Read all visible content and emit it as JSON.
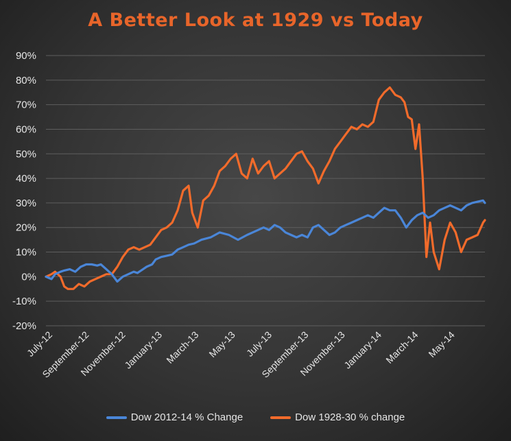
{
  "chart_data": {
    "type": "line",
    "title": "A Better Look at 1929 vs Today",
    "title_color": "#e8652a",
    "background": "dark gradient",
    "grid": true,
    "legend_position": "bottom",
    "ylim": [
      -20,
      90
    ],
    "yticks": [
      -20,
      -10,
      0,
      10,
      20,
      30,
      40,
      50,
      60,
      70,
      80,
      90
    ],
    "ytick_labels": [
      "-20%",
      "-10%",
      "0%",
      "10%",
      "20%",
      "30%",
      "40%",
      "50%",
      "60%",
      "70%",
      "80%",
      "90%"
    ],
    "xticks": [
      "July-12",
      "September-12",
      "November-12",
      "January-13",
      "March-13",
      "May-13",
      "July-13",
      "September-13",
      "November-13",
      "January-14",
      "March-14",
      "May-14"
    ],
    "x_range": [
      0,
      24
    ],
    "series": [
      {
        "name": "Dow 2012-14 % Change",
        "color": "#4a86d8",
        "x": [
          0,
          0.3,
          0.5,
          0.8,
          1.0,
          1.3,
          1.6,
          1.9,
          2.2,
          2.5,
          2.8,
          3.0,
          3.3,
          3.6,
          3.9,
          4.2,
          4.5,
          4.8,
          5.0,
          5.2,
          5.5,
          5.8,
          6.0,
          6.3,
          6.6,
          6.9,
          7.2,
          7.5,
          7.8,
          8.1,
          8.5,
          9.0,
          9.5,
          10.0,
          10.5,
          11.0,
          11.3,
          11.6,
          11.9,
          12.2,
          12.5,
          12.8,
          13.1,
          13.4,
          13.7,
          14.0,
          14.3,
          14.6,
          14.9,
          15.2,
          15.5,
          15.8,
          16.1,
          16.4,
          16.7,
          17.0,
          17.3,
          17.6,
          17.9,
          18.2,
          18.5,
          18.8,
          19.1,
          19.4,
          19.7,
          20.0,
          20.3,
          20.6,
          20.9,
          21.2,
          21.5,
          21.8,
          22.1,
          22.4,
          22.7,
          23.0,
          23.3,
          23.6,
          23.9,
          24.0
        ],
        "values": [
          0,
          -1,
          1,
          2,
          2.5,
          3,
          2,
          4,
          5,
          5,
          4.5,
          5,
          3,
          1,
          -2,
          0,
          1,
          2,
          1.5,
          2.5,
          4,
          5,
          7,
          8,
          8.5,
          9,
          11,
          12,
          13,
          13.5,
          15,
          16,
          18,
          17,
          15,
          17,
          18,
          19,
          20,
          19,
          21,
          20,
          18,
          17,
          16,
          17,
          16,
          20,
          21,
          19,
          17,
          18,
          20,
          21,
          22,
          23,
          24,
          25,
          24,
          26,
          28,
          27,
          27,
          24,
          20,
          23,
          25,
          26,
          24,
          25,
          27,
          28,
          29,
          28,
          27,
          29,
          30,
          30.5,
          31,
          30
        ]
      },
      {
        "name": "Dow 1928-30 % change",
        "color": "#f26b2b",
        "x": [
          0,
          0.3,
          0.5,
          0.8,
          1.0,
          1.2,
          1.5,
          1.8,
          2.1,
          2.4,
          2.7,
          3.0,
          3.3,
          3.6,
          3.9,
          4.2,
          4.5,
          4.8,
          5.1,
          5.4,
          5.7,
          6.0,
          6.3,
          6.6,
          6.9,
          7.2,
          7.5,
          7.8,
          8.0,
          8.3,
          8.6,
          8.9,
          9.2,
          9.5,
          9.8,
          10.1,
          10.4,
          10.7,
          11.0,
          11.3,
          11.6,
          11.9,
          12.2,
          12.5,
          12.8,
          13.1,
          13.4,
          13.7,
          14.0,
          14.3,
          14.6,
          14.9,
          15.2,
          15.5,
          15.8,
          16.1,
          16.4,
          16.7,
          17.0,
          17.3,
          17.6,
          17.9,
          18.2,
          18.5,
          18.8,
          19.1,
          19.4,
          19.6,
          19.8,
          20.0,
          20.2,
          20.4,
          20.6,
          20.8,
          21.0,
          21.2,
          21.5,
          21.8,
          22.1,
          22.4,
          22.7,
          23.0,
          23.3,
          23.6,
          23.9,
          24.0
        ],
        "values": [
          0,
          1,
          2,
          0,
          -4,
          -5,
          -5,
          -3,
          -4,
          -2,
          -1,
          0,
          1,
          1,
          4,
          8,
          11,
          12,
          11,
          12,
          13,
          16,
          19,
          20,
          22,
          27,
          35,
          37,
          26,
          20,
          31,
          33,
          37,
          43,
          45,
          48,
          50,
          42,
          40,
          48,
          42,
          45,
          47,
          40,
          42,
          44,
          47,
          50,
          51,
          47,
          44,
          38,
          43,
          47,
          52,
          55,
          58,
          61,
          60,
          62,
          61,
          63,
          72,
          75,
          77,
          74,
          73,
          71,
          65,
          64,
          52,
          62,
          40,
          8,
          22,
          10,
          3,
          15,
          22,
          18,
          10,
          15,
          16,
          17,
          22,
          23
        ]
      }
    ]
  }
}
